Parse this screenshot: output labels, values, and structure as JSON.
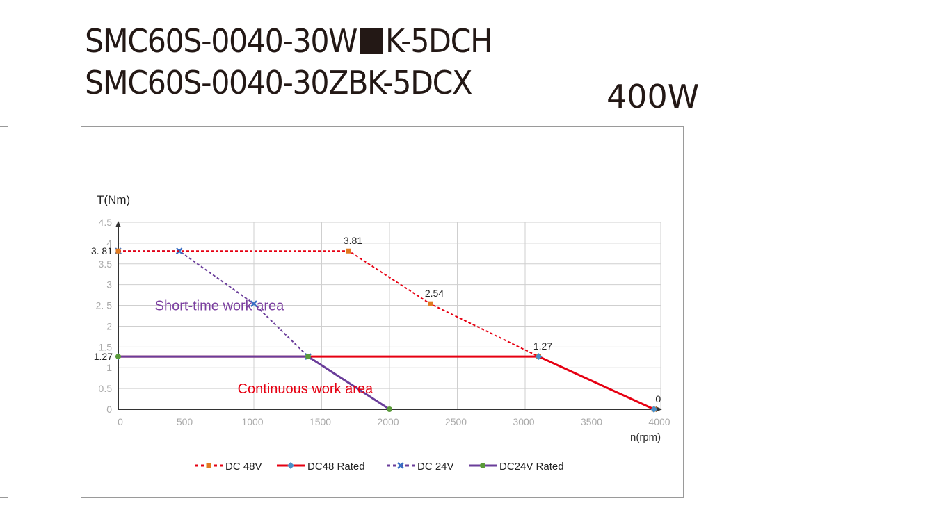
{
  "header": {
    "title_line1_prefix": "SMC60S-0040-30W",
    "title_line1_suffix": "K-5DCH",
    "title_line2": "SMC60S-0040-30ZBK-5DCX",
    "power": "400W"
  },
  "chart_data": {
    "type": "line",
    "ylabel": "T(Nm)",
    "xlabel": "n(rpm)",
    "xlim": [
      0,
      4000
    ],
    "ylim": [
      0,
      4.5
    ],
    "x_ticks": [
      "0",
      "500",
      "1000",
      "1500",
      "2000",
      "2500",
      "3000",
      "3500",
      "4000"
    ],
    "y_ticks": [
      "0",
      "0.5",
      "1",
      "1.5",
      "2",
      "2. 5",
      "3",
      "3.5",
      "4",
      "4.5"
    ],
    "y_ticks_values": [
      0,
      0.5,
      1,
      1.5,
      2,
      2.5,
      3,
      3.5,
      4,
      4.5
    ],
    "extra_y_labels": [
      {
        "text": "3. 81",
        "value": 3.81
      },
      {
        "text": "1.27",
        "value": 1.27
      }
    ],
    "grid": true,
    "legend_placement": "bottom",
    "series": [
      {
        "name": "DC 48V",
        "color": "#e60012",
        "style": "dashed",
        "marker": "square",
        "marker_color": "#e07b20",
        "x": [
          0,
          1700,
          2300,
          3100,
          3950
        ],
        "y": [
          3.81,
          3.81,
          2.54,
          1.27,
          0
        ]
      },
      {
        "name": "DC48 Rated",
        "color": "#e60012",
        "style": "solid",
        "marker": "diamond",
        "marker_color": "#4a90c8",
        "x": [
          0,
          3100,
          3950
        ],
        "y": [
          1.27,
          1.27,
          0
        ]
      },
      {
        "name": "DC 24V",
        "color": "#6a3d9a",
        "style": "dashed",
        "marker": "x",
        "marker_color": "#3a6fc4",
        "x": [
          0,
          450,
          1000,
          1400
        ],
        "y": [
          3.81,
          3.81,
          2.54,
          1.27
        ]
      },
      {
        "name": "DC24V Rated",
        "color": "#6a3d9a",
        "style": "solid",
        "marker": "circle",
        "marker_color": "#5a9a3a",
        "x": [
          0,
          1400,
          2000
        ],
        "y": [
          1.27,
          1.27,
          0
        ]
      }
    ],
    "data_labels": [
      {
        "text": "3.81",
        "x": 1700,
        "y": 3.81
      },
      {
        "text": "2.54",
        "x": 2300,
        "y": 2.54
      },
      {
        "text": "1.27",
        "x": 3100,
        "y": 1.27
      },
      {
        "text": "0",
        "x": 3950,
        "y": 0
      }
    ],
    "annotations": [
      {
        "text": "Short-time work area",
        "color": "#7b3fa0",
        "x": 270,
        "y": 2.5
      },
      {
        "text": "Continuous work area",
        "color": "#e60012",
        "x": 880,
        "y": 0.5
      }
    ]
  }
}
